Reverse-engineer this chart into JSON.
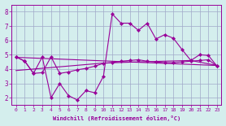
{
  "bg_color": "#d4eeed",
  "line_color": "#990099",
  "grid_color": "#a0a8c8",
  "xlabel": "Windchill (Refroidissement éolien,°C)",
  "xlim": [
    -0.5,
    23.5
  ],
  "ylim": [
    1.5,
    8.5
  ],
  "xticks": [
    0,
    1,
    2,
    3,
    4,
    5,
    6,
    7,
    8,
    9,
    10,
    11,
    12,
    13,
    14,
    15,
    16,
    17,
    18,
    19,
    20,
    21,
    22,
    23
  ],
  "yticks": [
    2,
    3,
    4,
    5,
    6,
    7,
    8
  ],
  "markersize": 2.2,
  "linewidth": 0.8,
  "series": [
    {
      "x": [
        0,
        1,
        2,
        3,
        4,
        5,
        6,
        7,
        8,
        9,
        10,
        11,
        12,
        13,
        14,
        15,
        16,
        17,
        18,
        19,
        20,
        21,
        22,
        23
      ],
      "y": [
        4.85,
        4.55,
        3.7,
        4.85,
        2.0,
        3.0,
        2.15,
        1.85,
        2.5,
        2.35,
        3.5,
        7.85,
        7.2,
        7.2,
        6.7,
        7.2,
        6.1,
        6.4,
        6.15,
        5.35,
        4.6,
        5.0,
        4.95,
        4.2
      ],
      "marker": true
    },
    {
      "x": [
        0,
        1,
        2,
        3,
        4,
        5,
        6,
        7,
        8,
        9,
        10,
        11,
        12,
        13,
        14,
        15,
        16,
        17,
        18,
        19,
        20,
        21,
        22,
        23
      ],
      "y": [
        4.85,
        4.55,
        3.7,
        3.75,
        4.85,
        3.7,
        3.8,
        3.95,
        4.05,
        4.2,
        4.4,
        4.45,
        4.55,
        4.6,
        4.65,
        4.55,
        4.5,
        4.45,
        4.45,
        4.5,
        4.55,
        4.6,
        4.65,
        4.2
      ],
      "marker": true
    },
    {
      "x": [
        0,
        23
      ],
      "y": [
        4.82,
        4.25
      ],
      "marker": false
    },
    {
      "x": [
        0,
        10,
        15,
        20,
        23
      ],
      "y": [
        3.9,
        4.42,
        4.52,
        4.6,
        4.25
      ],
      "marker": false
    }
  ]
}
